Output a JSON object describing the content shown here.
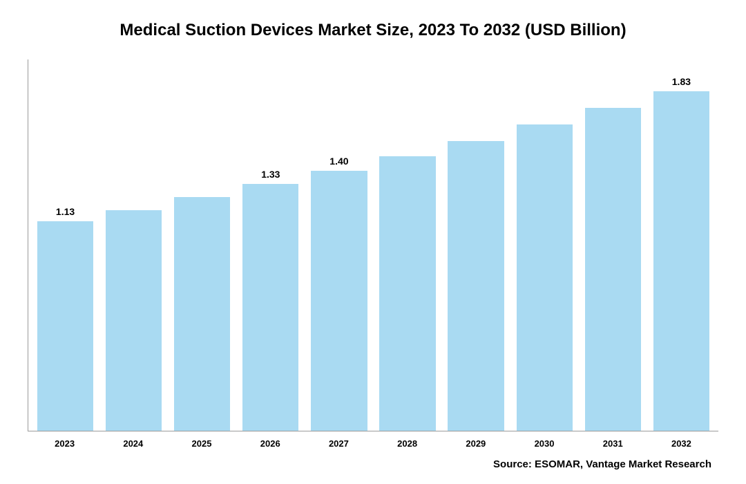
{
  "chart": {
    "type": "bar",
    "title": "Medical Suction Devices Market Size, 2023 To 2032 (USD Billion)",
    "title_fontsize": 24,
    "title_weight": 700,
    "background_color": "#ffffff",
    "axis_color": "#9a9a9a",
    "categories": [
      "2023",
      "2024",
      "2025",
      "2026",
      "2027",
      "2028",
      "2029",
      "2030",
      "2031",
      "2032"
    ],
    "values": [
      1.13,
      1.19,
      1.26,
      1.33,
      1.4,
      1.48,
      1.56,
      1.65,
      1.74,
      1.83
    ],
    "value_labels": [
      "1.13",
      "",
      "",
      "1.33",
      "1.40",
      "",
      "",
      "",
      "",
      "1.83"
    ],
    "bar_color": "#a9daf2",
    "bar_width_pct": 82,
    "ylim": [
      0,
      2.0
    ],
    "tick_fontsize": 13,
    "tick_weight": 700,
    "bar_label_fontsize": 14,
    "bar_label_weight": 700,
    "source_text": "Source: ESOMAR, Vantage Market Research",
    "source_fontsize": 15
  }
}
